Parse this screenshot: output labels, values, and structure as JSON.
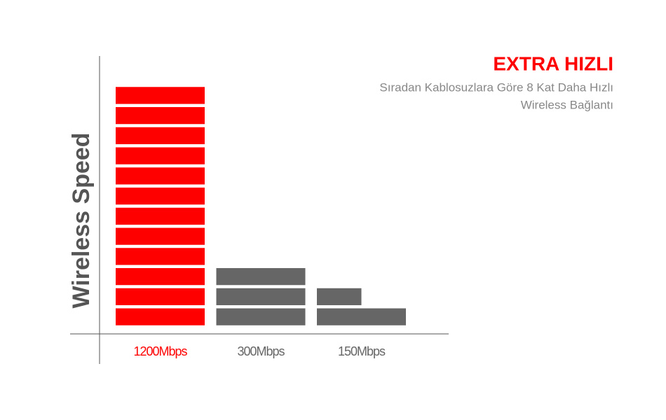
{
  "chart_data": {
    "type": "block-bar",
    "title": "EXTRA HIZLI",
    "subtitle": [
      "Sıradan Kablosuzlara Göre 8 Kat Daha Hızlı",
      "Wireless Bağlantı"
    ],
    "y_label": "Wireless Speed",
    "categories": [
      "1200Mbps",
      "300Mbps",
      "150Mbps"
    ],
    "values": [
      1200,
      300,
      150
    ],
    "colors": [
      "#ff0000",
      "#666666",
      "#666666"
    ]
  }
}
